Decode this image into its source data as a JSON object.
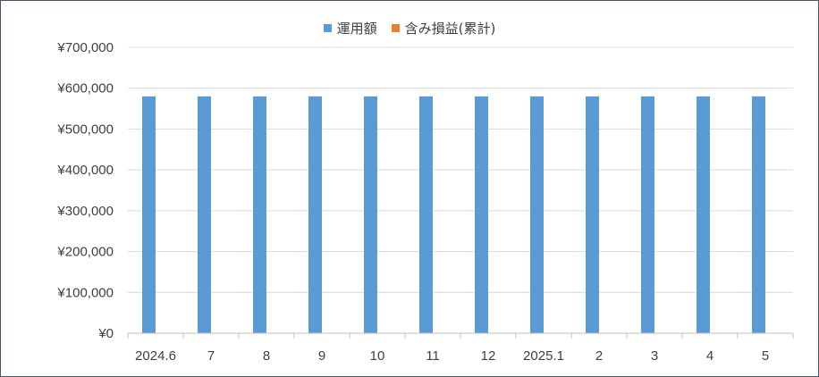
{
  "chart_data": {
    "type": "bar",
    "categories": [
      "2024.6",
      "7",
      "8",
      "9",
      "10",
      "11",
      "12",
      "2025.1",
      "2",
      "3",
      "4",
      "5"
    ],
    "series": [
      {
        "name": "運用額",
        "color": "#5b9bd5",
        "values": [
          580000,
          580000,
          580000,
          580000,
          580000,
          580000,
          580000,
          580000,
          580000,
          580000,
          580000,
          580000
        ]
      },
      {
        "name": "含み損益(累計)",
        "color": "#ed7d31",
        "values": [
          0,
          0,
          0,
          0,
          0,
          0,
          0,
          0,
          0,
          0,
          0,
          0
        ]
      }
    ],
    "ylim": [
      0,
      700000
    ],
    "yticks": [
      0,
      100000,
      200000,
      300000,
      400000,
      500000,
      600000,
      700000
    ],
    "ytick_labels": [
      "¥0",
      "¥100,000",
      "¥200,000",
      "¥300,000",
      "¥400,000",
      "¥500,000",
      "¥600,000",
      "¥700,000"
    ],
    "grid": true,
    "legend_position": "top"
  }
}
